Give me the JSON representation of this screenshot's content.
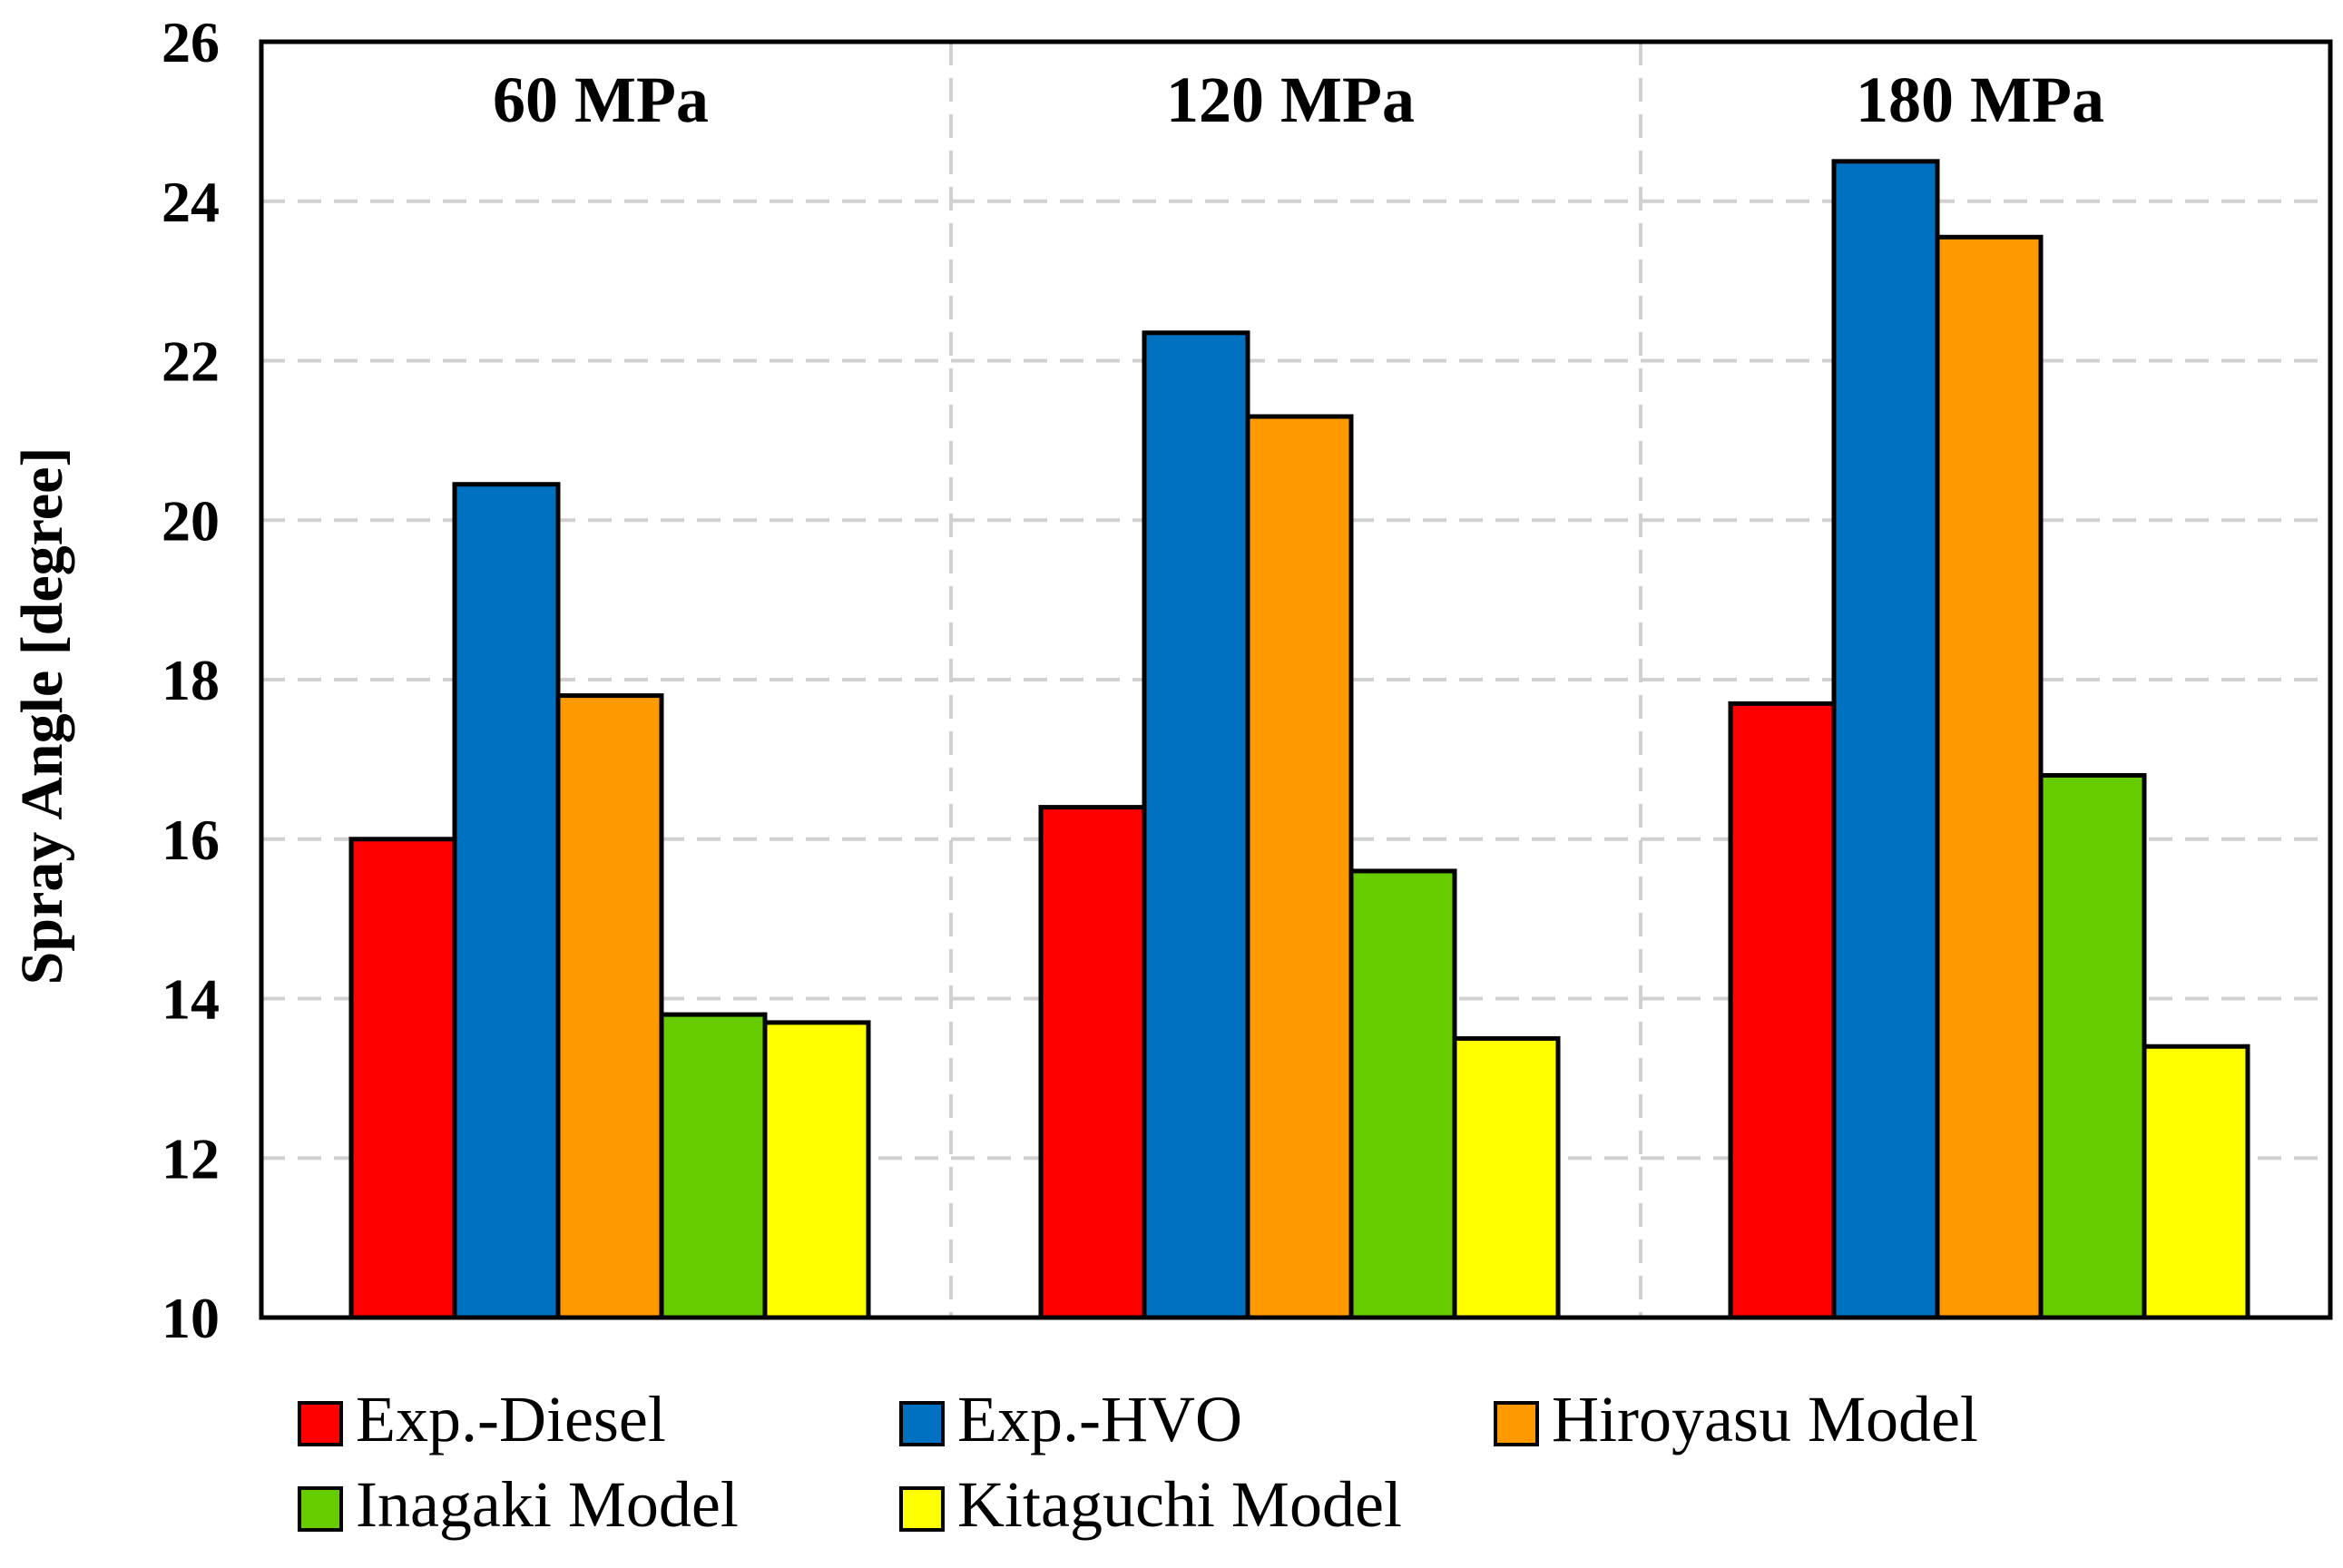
{
  "chart_data": {
    "type": "bar",
    "title": "",
    "xlabel": "",
    "ylabel": "Spray Angle [degree]",
    "ylim": [
      10,
      26
    ],
    "yticks": [
      10,
      12,
      14,
      16,
      18,
      20,
      22,
      24,
      26
    ],
    "grid": true,
    "legend_position": "bottom",
    "categories": [
      "60 MPa",
      "120 MPa",
      "180 MPa"
    ],
    "series": [
      {
        "name": "Exp.-Diesel",
        "color": "#ff0000",
        "values": [
          16.0,
          16.4,
          17.7
        ]
      },
      {
        "name": "Exp.-HVO",
        "color": "#0070c0",
        "values": [
          20.45,
          22.35,
          24.5
        ]
      },
      {
        "name": "Hiroyasu Model",
        "color": "#ff9900",
        "values": [
          17.8,
          21.3,
          23.55
        ]
      },
      {
        "name": "Inagaki Model",
        "color": "#66cc00",
        "values": [
          13.8,
          15.6,
          16.8
        ]
      },
      {
        "name": "Kitaguchi Model",
        "color": "#ffff00",
        "values": [
          13.7,
          13.5,
          13.4
        ]
      }
    ]
  }
}
